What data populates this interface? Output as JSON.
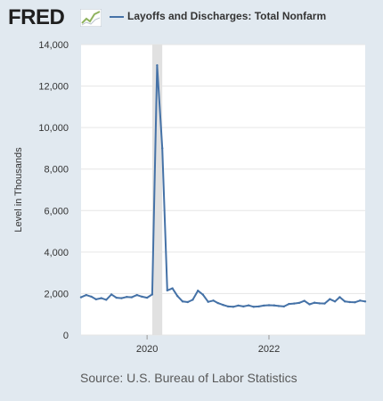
{
  "header": {
    "logo": "FRED",
    "legend_label": "Layoffs and Discharges: Total Nonfarm"
  },
  "source": "Source: U.S. Bureau of Labor Statistics",
  "colors": {
    "series": "#4572a7",
    "recession": "#e1e1e1",
    "background": "#e1e9f0",
    "plot": "#ffffff"
  },
  "chart_data": {
    "type": "line",
    "title": "",
    "ylabel": "Level in Thousands",
    "xlabel": "",
    "ylim": [
      0,
      14000
    ],
    "yticks": [
      0,
      2000,
      4000,
      6000,
      8000,
      10000,
      12000,
      14000
    ],
    "ytick_labels": [
      "0",
      "2,000",
      "4,000",
      "6,000",
      "8,000",
      "10,000",
      "12,000",
      "14,000"
    ],
    "xlim": [
      "2018-12-01",
      "2023-08-01"
    ],
    "xticks": [
      {
        "date": "2020-01-01",
        "label": "2020"
      },
      {
        "date": "2022-01-01",
        "label": "2022"
      }
    ],
    "grid": "horizontal",
    "recession": {
      "start": "2020-02-01",
      "end": "2020-04-01"
    },
    "series": [
      {
        "name": "Layoffs and Discharges: Total Nonfarm",
        "x": [
          "2018-12",
          "2019-01",
          "2019-02",
          "2019-03",
          "2019-04",
          "2019-05",
          "2019-06",
          "2019-07",
          "2019-08",
          "2019-09",
          "2019-10",
          "2019-11",
          "2019-12",
          "2020-01",
          "2020-02",
          "2020-03",
          "2020-04",
          "2020-05",
          "2020-06",
          "2020-07",
          "2020-08",
          "2020-09",
          "2020-10",
          "2020-11",
          "2020-12",
          "2021-01",
          "2021-02",
          "2021-03",
          "2021-04",
          "2021-05",
          "2021-06",
          "2021-07",
          "2021-08",
          "2021-09",
          "2021-10",
          "2021-11",
          "2021-12",
          "2022-01",
          "2022-02",
          "2022-03",
          "2022-04",
          "2022-05",
          "2022-06",
          "2022-07",
          "2022-08",
          "2022-09",
          "2022-10",
          "2022-11",
          "2022-12",
          "2023-01",
          "2023-02",
          "2023-03",
          "2023-04",
          "2023-05",
          "2023-06",
          "2023-07",
          "2023-08"
        ],
        "values": [
          1820,
          1930,
          1850,
          1720,
          1780,
          1700,
          1960,
          1800,
          1780,
          1840,
          1820,
          1930,
          1850,
          1800,
          1960,
          13000,
          9000,
          2150,
          2250,
          1880,
          1620,
          1590,
          1700,
          2140,
          1950,
          1600,
          1660,
          1540,
          1450,
          1380,
          1360,
          1420,
          1380,
          1430,
          1360,
          1380,
          1420,
          1440,
          1430,
          1400,
          1380,
          1500,
          1520,
          1550,
          1650,
          1480,
          1560,
          1530,
          1520,
          1730,
          1620,
          1830,
          1620,
          1590,
          1580,
          1660,
          1620
        ]
      }
    ]
  }
}
